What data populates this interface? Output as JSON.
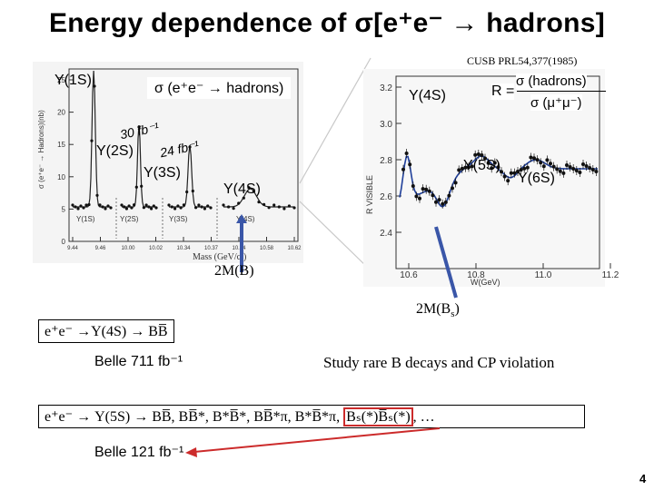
{
  "title": "Energy dependence of σ[e⁺e⁻ → hadrons]",
  "citation": "CUSB  PRL54,377(1985)",
  "left_plot": {
    "y_axis_label": "σ (e⁺e⁻ → Hadrons)(nb)",
    "x_axis_label": "Mass (GeV/c²)",
    "y_ticks": [
      "25",
      "20",
      "15",
      "10",
      "5",
      "0"
    ],
    "x_ticks": [
      "9.44",
      "9.46",
      "10.00",
      "10.02",
      "10.34",
      "10.37",
      "10.54",
      "10.58",
      "10.62"
    ],
    "inner_labels": [
      "Υ(1S)",
      "Υ(2S)",
      "Υ(3S)",
      "Υ(4S)"
    ],
    "overlay_title": "σ (e⁺e⁻ → hadrons)",
    "upsilon_1s": "Υ(1S)",
    "upsilon_2s": "Υ(2S)",
    "upsilon_3s": "Υ(3S)",
    "upsilon_4s": "Υ(4S)",
    "lumi_2s": "30 fb⁻¹",
    "lumi_3s": "24 fb⁻¹"
  },
  "right_plot": {
    "y_axis_label": "R VISIBLE",
    "x_axis_label": "W(GeV)",
    "y_ticks": [
      "3.2",
      "3.0",
      "2.8",
      "2.6",
      "2.4"
    ],
    "x_ticks": [
      "10.6",
      "10.8",
      "11.0",
      "11.2"
    ],
    "ratio_label": "R =",
    "ratio_num": "σ (hadrons)",
    "ratio_den": "σ (μ⁺μ⁻)",
    "upsilon_4s": "Υ(4S)",
    "upsilon_5s": "Υ(5S)",
    "upsilon_6s": "Υ(6S)"
  },
  "threshold_b": "2M(B)",
  "threshold_bs": "2M(B",
  "threshold_bs_sub": "s",
  "threshold_bs_close": ")",
  "box_4s": "e⁺e⁻ →Υ(4S) → BB̅",
  "belle_4s": "Belle 711 fb⁻¹",
  "study_text": "Study rare B decays and CP violation",
  "box_5s": "e⁺e⁻ → Υ(5S) → BB̅, BB̅*, B*B̅*, BB̅*π, B*B̅*π,",
  "box_5s_bs": "Bₛ(*)B̅ₛ(*)",
  "box_5s_tail": ", …",
  "belle_5s": "Belle 121 fb⁻¹",
  "page_number": "4",
  "colors": {
    "arrow_blue": "#3a56a8",
    "arrow_red": "#cc2b2b",
    "zoom_line": "#c8c8c8",
    "plot_bg": "#f4f4f4"
  }
}
